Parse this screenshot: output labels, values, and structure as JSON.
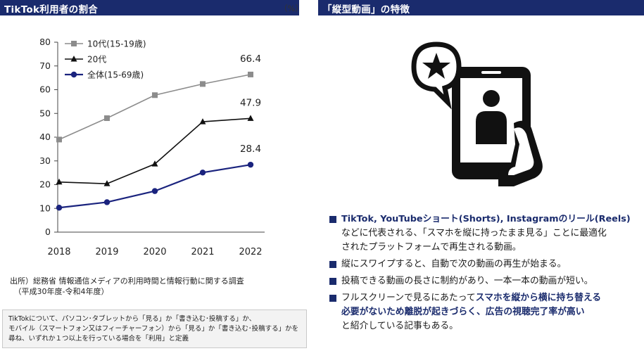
{
  "left_panel": {
    "title": "TikTok利用者の割合",
    "unit": "（%）",
    "source_lines": [
      "出所）総務省 情報通信メディアの利用時間と情報行動に関する調査",
      "　（平成30年度-令和4年度）"
    ],
    "note_lines": [
      "TikTokについて、パソコン･タブレットから「見る」か「書き込む･投稿する」か、",
      "モバイル（スマートフォン又はフィーチャーフォン）から「見る」か「書き込む･投稿する」かを",
      "尋ね、いずれか１つ以上を行っている場合を「利用」と定義"
    ]
  },
  "chart_data": {
    "type": "line",
    "title": "TikTok利用者の割合",
    "x": [
      "2018",
      "2019",
      "2020",
      "2021",
      "2022"
    ],
    "ylim": [
      0,
      80
    ],
    "yticks": [
      0,
      10,
      20,
      30,
      40,
      50,
      60,
      70,
      80
    ],
    "grid": false,
    "legend_position": "top-left",
    "series": [
      {
        "name": "10代(15-19歳)",
        "values": [
          39.0,
          48.0,
          57.7,
          62.4,
          66.4
        ],
        "color": "#8c8c8c",
        "marker": "square",
        "end_label": "66.4"
      },
      {
        "name": "20代",
        "values": [
          21.1,
          20.4,
          28.7,
          46.5,
          47.9
        ],
        "color": "#111111",
        "marker": "triangle",
        "end_label": "47.9"
      },
      {
        "name": "全体(15-69歳)",
        "values": [
          10.3,
          12.6,
          17.3,
          25.1,
          28.4
        ],
        "color": "#1a237e",
        "marker": "circle",
        "end_label": "28.4"
      }
    ]
  },
  "right_panel": {
    "title": "「縦型動画」の特徴",
    "illustration_icon": "phone-person-star-icon",
    "bullets": [
      {
        "parts": [
          {
            "text": "TikTok, YouTubeショート(Shorts), Instagramのリール(Reels)",
            "bold": true
          },
          {
            "text": "などに代表される、「スマホを縦に持ったまま見る」ことに最適化",
            "bold": false
          },
          {
            "text": "されたプラットフォームで再生される動画。",
            "bold": false
          }
        ]
      },
      {
        "parts": [
          {
            "text": "縦にスワイプすると、自動で次の動画の再生が始まる。",
            "bold": false
          }
        ]
      },
      {
        "parts": [
          {
            "text": "投稿できる動画の長さに制約があり、一本一本の動画が短い。",
            "bold": false
          }
        ]
      },
      {
        "parts": [
          {
            "text": "フルスクリーンで見るにあたって",
            "bold": false
          },
          {
            "text": "スマホを縦から横に持ち替える",
            "bold": true
          },
          {
            "text": "必要がないため離脱が起きづらく、広告の視聴完了率が高い",
            "bold": true
          },
          {
            "text": "と紹介している記事もある。",
            "bold": false
          }
        ]
      }
    ]
  }
}
